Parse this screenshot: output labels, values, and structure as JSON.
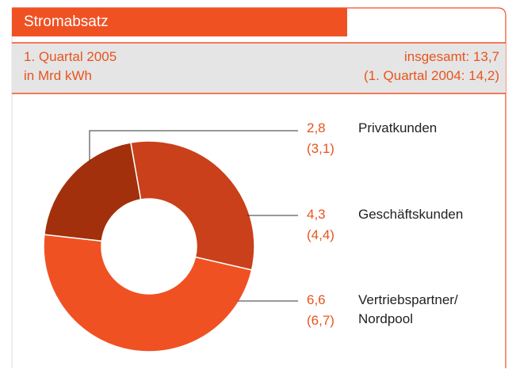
{
  "header": {
    "title": "Stromabsatz",
    "period": "1. Quartal 2005",
    "unit": "in Mrd kWh",
    "total": "insgesamt: 13,7",
    "previous_total": "(1. Quartal 2004: 14,2)"
  },
  "chart_data": {
    "type": "donut",
    "categories": [
      "Privatkunden",
      "Geschäftskunden",
      "Vertriebspartner/\nNordpool"
    ],
    "values": [
      2.8,
      4.3,
      6.6
    ],
    "value_labels": [
      "2,8",
      "4,3",
      "6,6"
    ],
    "previous_values": [
      3.1,
      4.4,
      6.7
    ],
    "previous_value_labels": [
      "(3,1)",
      "(4,4)",
      "(6,7)"
    ],
    "colors": [
      "#a2300c",
      "#c9401b",
      "#f05123"
    ]
  }
}
